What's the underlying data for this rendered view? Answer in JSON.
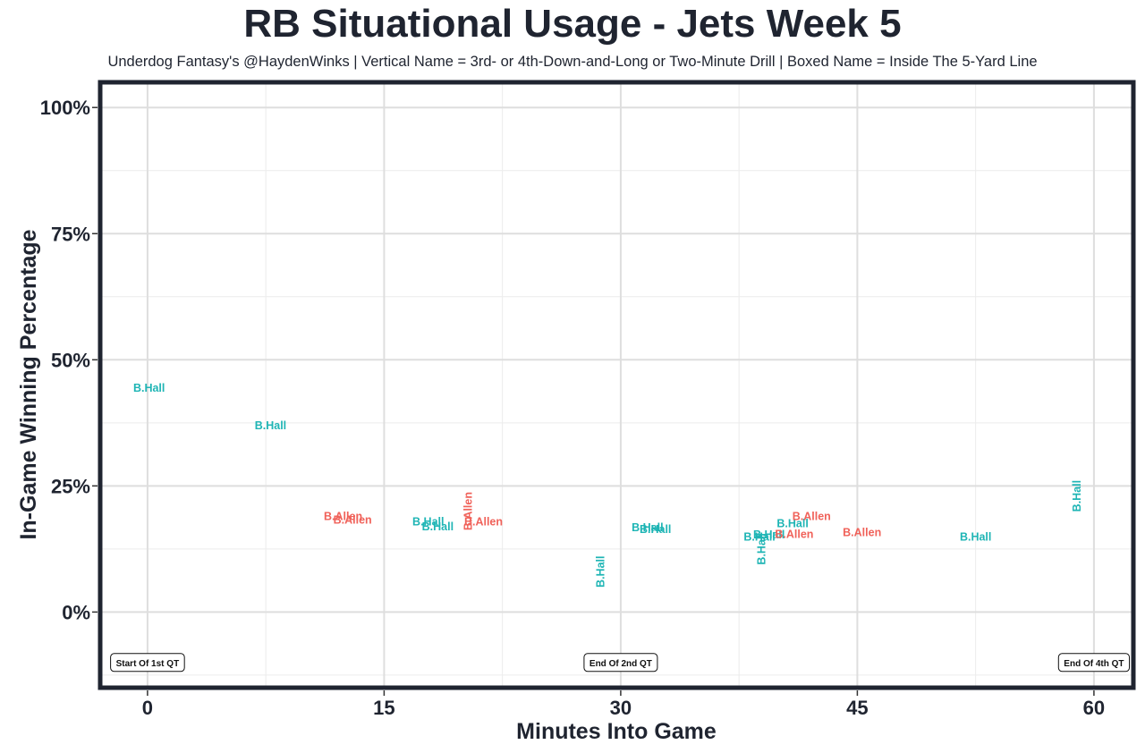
{
  "chart_data": {
    "type": "scatter",
    "title": "RB Situational Usage - Jets Week 5",
    "subtitle": "Underdog Fantasy's @HaydenWinks | Vertical Name = 3rd- or 4th-Down-and-Long or Two-Minute Drill | Boxed Name = Inside The 5-Yard Line",
    "xlabel": "Minutes Into Game",
    "ylabel": "In-Game Winning Percentage",
    "xlim": [
      -3,
      62.5
    ],
    "ylim": [
      -15,
      105
    ],
    "x_ticks": [
      0,
      15,
      30,
      45,
      60
    ],
    "x_tick_labels": [
      "0",
      "15",
      "30",
      "45",
      "60"
    ],
    "y_ticks": [
      0,
      25,
      50,
      75,
      100
    ],
    "y_tick_labels": [
      "0%",
      "25%",
      "50%",
      "75%",
      "100%"
    ],
    "grid": true,
    "annotations": [
      {
        "x": 0,
        "y": -10,
        "label": "Start Of 1st QT"
      },
      {
        "x": 30,
        "y": -10,
        "label": "End Of 2nd QT"
      },
      {
        "x": 60,
        "y": -10,
        "label": "End Of 4th QT"
      }
    ],
    "series": [
      {
        "name": "B.Hall",
        "color": "#1fb5b5",
        "points": [
          {
            "x": 0.1,
            "y": 44.5,
            "label": "B.Hall",
            "vertical": false
          },
          {
            "x": 7.8,
            "y": 37.0,
            "label": "B.Hall",
            "vertical": false
          },
          {
            "x": 17.8,
            "y": 18.0,
            "label": "B.Hall",
            "vertical": false
          },
          {
            "x": 18.4,
            "y": 17.0,
            "label": "B.Hall",
            "vertical": false
          },
          {
            "x": 28.7,
            "y": 8.0,
            "label": "B.Hall",
            "vertical": true
          },
          {
            "x": 31.7,
            "y": 16.8,
            "label": "B.Hall",
            "vertical": false
          },
          {
            "x": 32.2,
            "y": 16.5,
            "label": "B.Hall",
            "vertical": false
          },
          {
            "x": 38.8,
            "y": 15.0,
            "label": "B.Hall",
            "vertical": false
          },
          {
            "x": 38.9,
            "y": 12.5,
            "label": "B.Hall",
            "vertical": true
          },
          {
            "x": 39.4,
            "y": 15.4,
            "label": "B.Hall",
            "vertical": false
          },
          {
            "x": 40.9,
            "y": 17.6,
            "label": "B.Hall",
            "vertical": false
          },
          {
            "x": 52.5,
            "y": 15.0,
            "label": "B.Hall",
            "vertical": false
          },
          {
            "x": 58.9,
            "y": 23.0,
            "label": "B.Hall",
            "vertical": true
          }
        ]
      },
      {
        "name": "B.Allen",
        "color": "#f0625a",
        "points": [
          {
            "x": 12.4,
            "y": 19.0,
            "label": "B.Allen",
            "vertical": false
          },
          {
            "x": 13.0,
            "y": 18.3,
            "label": "B.Allen",
            "vertical": false
          },
          {
            "x": 20.3,
            "y": 20.0,
            "label": "B.Allen",
            "vertical": true
          },
          {
            "x": 21.3,
            "y": 18.0,
            "label": "B.Allen",
            "vertical": false
          },
          {
            "x": 41.0,
            "y": 15.5,
            "label": "B.Allen",
            "vertical": false
          },
          {
            "x": 42.1,
            "y": 19.0,
            "label": "B.Allen",
            "vertical": false
          },
          {
            "x": 45.3,
            "y": 15.8,
            "label": "B.Allen",
            "vertical": false
          }
        ]
      }
    ]
  }
}
